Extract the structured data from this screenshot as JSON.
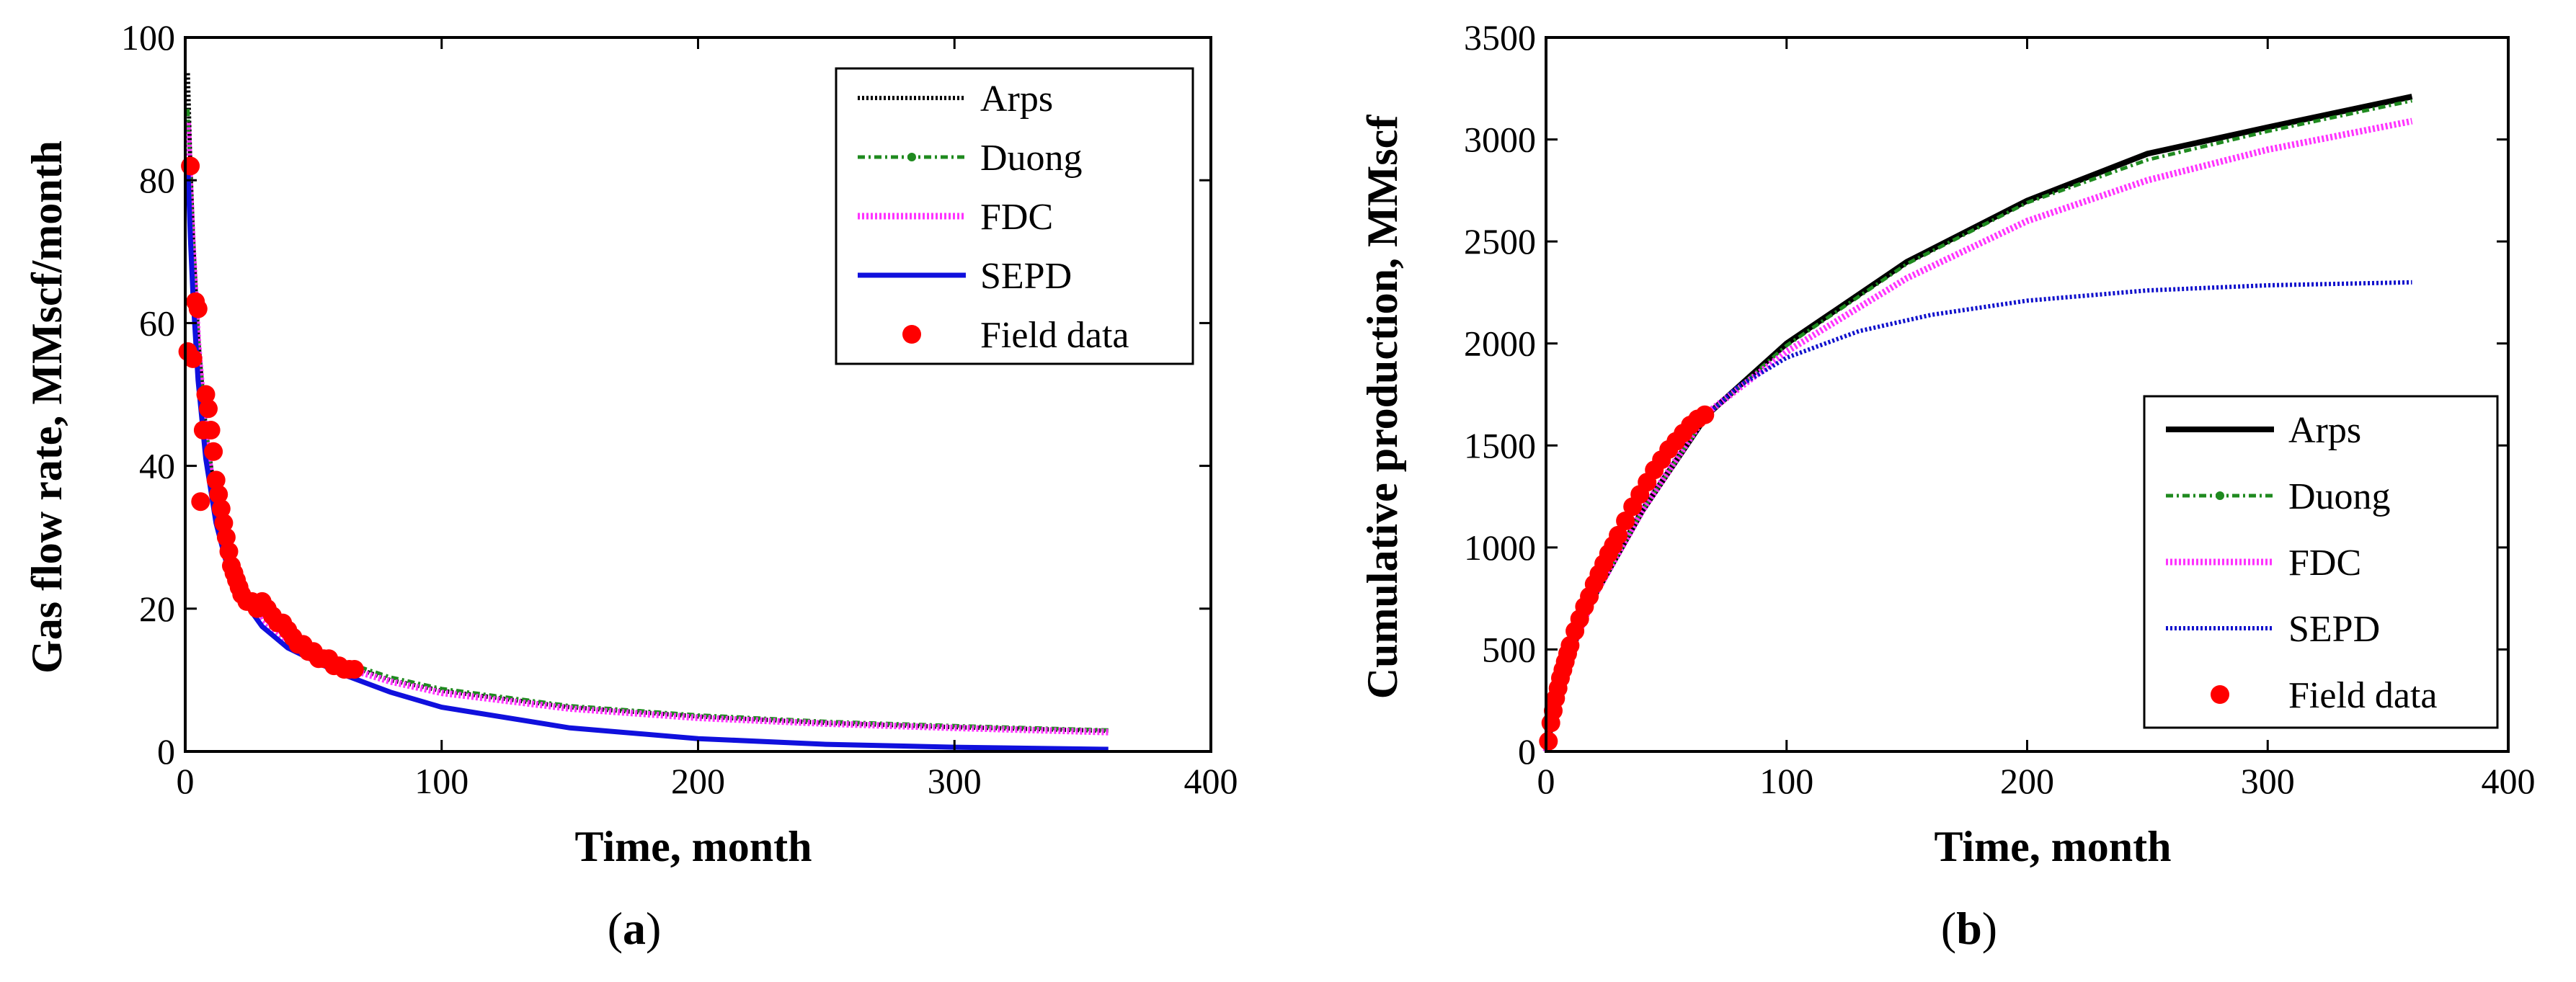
{
  "chart_data": [
    {
      "type": "line",
      "panel_label": "(a)",
      "caption_letter": "a",
      "xlabel": "Time, month",
      "ylabel": "Gas flow rate, MMscf/month",
      "xlim": [
        0,
        400
      ],
      "ylim": [
        0,
        100
      ],
      "xticks": [
        "0",
        "100",
        "200",
        "300",
        "400"
      ],
      "yticks": [
        "0",
        "20",
        "40",
        "60",
        "80",
        "100"
      ],
      "legend_position": "top-right",
      "series": [
        {
          "name": "Arps",
          "style": "dotted",
          "color": "#000000",
          "x": [
            1,
            2,
            3,
            5,
            8,
            12,
            16,
            20,
            30,
            40,
            60,
            80,
            100,
            150,
            200,
            250,
            300,
            360
          ],
          "y": [
            95,
            82,
            72,
            58,
            45,
            35,
            29,
            25,
            19,
            16,
            12.5,
            10,
            8.5,
            6.2,
            4.9,
            4.0,
            3.4,
            2.9
          ]
        },
        {
          "name": "Duong",
          "style": "dash-dot-marker",
          "color": "#1f8a1f",
          "x": [
            1,
            2,
            3,
            5,
            8,
            12,
            16,
            20,
            30,
            40,
            60,
            80,
            100,
            150,
            200,
            250,
            300,
            360
          ],
          "y": [
            90,
            80,
            71,
            58,
            45,
            35,
            29,
            25,
            19,
            16,
            12.8,
            10.4,
            8.8,
            6.4,
            5.1,
            4.2,
            3.6,
            3.0
          ]
        },
        {
          "name": "FDC",
          "style": "dotted-thick",
          "color": "#ff33ff",
          "x": [
            1,
            2,
            3,
            5,
            8,
            12,
            16,
            20,
            30,
            40,
            60,
            80,
            100,
            150,
            200,
            250,
            300,
            360
          ],
          "y": [
            88,
            78,
            70,
            57,
            44,
            34,
            28,
            24,
            18.5,
            15.5,
            12,
            9.8,
            8.2,
            6.0,
            4.7,
            3.9,
            3.3,
            2.7
          ]
        },
        {
          "name": "SEPD",
          "style": "solid",
          "color": "#1010dd",
          "x": [
            1,
            2,
            3,
            5,
            8,
            12,
            16,
            20,
            30,
            40,
            60,
            80,
            100,
            150,
            200,
            250,
            300,
            360
          ],
          "y": [
            82,
            72,
            64,
            52,
            41,
            32,
            26.5,
            22.5,
            17.5,
            14.5,
            11,
            8.3,
            6.2,
            3.3,
            1.8,
            1.0,
            0.6,
            0.3
          ]
        },
        {
          "name": "Field data",
          "style": "markers",
          "color": "#ff0000",
          "x": [
            1,
            2,
            3,
            4,
            5,
            6,
            7,
            8,
            9,
            10,
            11,
            12,
            13,
            14,
            15,
            16,
            17,
            18,
            19,
            20,
            21,
            22,
            24,
            26,
            28,
            30,
            32,
            34,
            36,
            38,
            40,
            42,
            44,
            46,
            48,
            50,
            52,
            54,
            56,
            58,
            60,
            62,
            64,
            66
          ],
          "y": [
            56,
            82,
            55,
            63,
            62,
            35,
            45,
            50,
            48,
            45,
            42,
            38,
            36,
            34,
            32,
            30,
            28,
            26,
            25,
            24,
            23,
            22,
            21,
            21,
            20,
            21,
            20,
            19,
            18,
            18,
            17,
            16,
            15,
            15,
            14,
            14,
            13,
            13,
            13,
            12,
            12,
            11.5,
            11.5,
            11.5
          ]
        }
      ]
    },
    {
      "type": "line",
      "panel_label": "(b)",
      "caption_letter": "b",
      "xlabel": "Time, month",
      "ylabel": "Cumulative production, MMscf",
      "xlim": [
        0,
        400
      ],
      "ylim": [
        0,
        3500
      ],
      "xticks": [
        "0",
        "100",
        "200",
        "300",
        "400"
      ],
      "yticks": [
        "0",
        "500",
        "1000",
        "1500",
        "2000",
        "2500",
        "3000",
        "3500"
      ],
      "legend_position": "bottom-right",
      "series": [
        {
          "name": "Arps",
          "style": "solid-thick",
          "color": "#000000",
          "x": [
            0,
            5,
            10,
            20,
            40,
            67,
            100,
            150,
            200,
            250,
            300,
            360
          ],
          "y": [
            0,
            300,
            480,
            760,
            1180,
            1650,
            2000,
            2400,
            2700,
            2930,
            3060,
            3210
          ]
        },
        {
          "name": "Duong",
          "style": "dash-dot-marker",
          "color": "#1f8a1f",
          "x": [
            0,
            5,
            10,
            20,
            40,
            67,
            100,
            150,
            200,
            250,
            300,
            360
          ],
          "y": [
            0,
            300,
            480,
            760,
            1180,
            1650,
            1990,
            2390,
            2690,
            2900,
            3040,
            3190
          ]
        },
        {
          "name": "FDC",
          "style": "dotted-thick",
          "color": "#ff33ff",
          "x": [
            0,
            5,
            10,
            20,
            40,
            67,
            100,
            150,
            200,
            250,
            300,
            360
          ],
          "y": [
            0,
            300,
            480,
            760,
            1180,
            1660,
            1960,
            2320,
            2600,
            2800,
            2950,
            3090
          ]
        },
        {
          "name": "SEPD",
          "style": "dotted",
          "color": "#1010cc",
          "x": [
            67,
            80,
            100,
            130,
            160,
            200,
            250,
            300,
            360
          ],
          "y": [
            1650,
            1790,
            1930,
            2060,
            2140,
            2210,
            2260,
            2285,
            2300
          ]
        },
        {
          "name": "Field data",
          "style": "markers",
          "color": "#ff0000",
          "x": [
            1,
            2,
            3,
            4,
            5,
            6,
            7,
            8,
            9,
            10,
            12,
            14,
            16,
            18,
            20,
            22,
            24,
            26,
            28,
            30,
            33,
            36,
            39,
            42,
            45,
            48,
            51,
            54,
            57,
            60,
            63,
            66
          ],
          "y": [
            50,
            140,
            200,
            260,
            310,
            360,
            400,
            440,
            480,
            520,
            590,
            650,
            710,
            760,
            820,
            870,
            920,
            970,
            1010,
            1060,
            1130,
            1200,
            1260,
            1320,
            1380,
            1430,
            1480,
            1520,
            1560,
            1600,
            1630,
            1650
          ]
        }
      ]
    }
  ]
}
